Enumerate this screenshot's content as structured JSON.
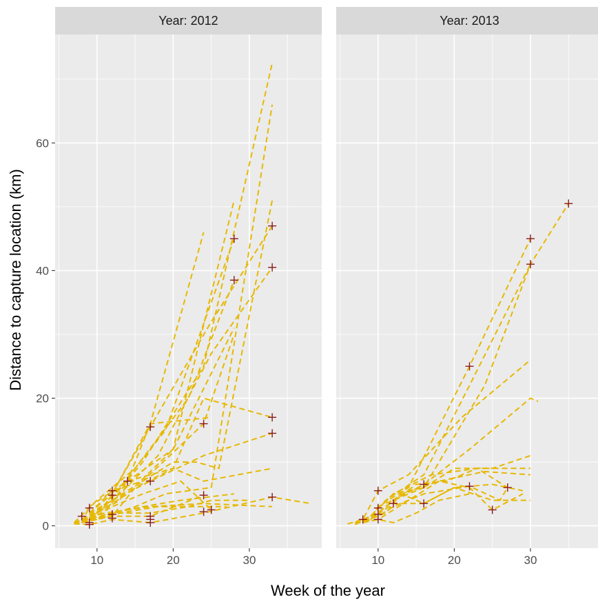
{
  "chart_data": {
    "type": "line",
    "xlabel": "Week of the year",
    "ylabel": "Distance to capture location (km)",
    "xlim": [
      4.5,
      39.5
    ],
    "ylim": [
      -3.5,
      77
    ],
    "x_ticks": [
      10,
      20,
      30
    ],
    "y_ticks": [
      0,
      20,
      40,
      60
    ],
    "grid": true,
    "colors": {
      "tracks": "#e6b800",
      "end_points": "#8b1a1a",
      "panel": "#ebebeb",
      "strip": "#d9d9d9"
    },
    "line_style": "dashed",
    "point_shape": "plus",
    "panels": [
      {
        "label": "Year: 2012",
        "tracks": [
          [
            [
              8,
              0.5
            ],
            [
              9,
              3
            ],
            [
              14,
              7
            ],
            [
              20,
              12
            ],
            [
              28,
              51
            ]
          ],
          [
            [
              8,
              1
            ],
            [
              10,
              2
            ],
            [
              13,
              6
            ],
            [
              19,
              15
            ],
            [
              28,
              45
            ]
          ],
          [
            [
              7,
              0.5
            ],
            [
              10,
              4
            ],
            [
              15,
              9
            ],
            [
              22,
              20
            ],
            [
              28,
              38.5
            ]
          ],
          [
            [
              8,
              1
            ],
            [
              11,
              3
            ],
            [
              16,
              10
            ],
            [
              24,
              25
            ],
            [
              33,
              72.5
            ]
          ],
          [
            [
              9,
              2
            ],
            [
              12,
              5
            ],
            [
              17,
              16
            ],
            [
              24,
              46
            ]
          ],
          [
            [
              8,
              0.5
            ],
            [
              11,
              3
            ],
            [
              17,
              15.5
            ],
            [
              25,
              32
            ],
            [
              33,
              47
            ]
          ],
          [
            [
              9,
              1
            ],
            [
              13,
              5
            ],
            [
              18,
              11
            ],
            [
              25,
              27
            ],
            [
              33,
              40.5
            ]
          ],
          [
            [
              9,
              2
            ],
            [
              12,
              5.5
            ],
            [
              16,
              7
            ],
            [
              24,
              16
            ],
            [
              28,
              30
            ]
          ],
          [
            [
              7,
              0.5
            ],
            [
              10,
              2
            ],
            [
              14,
              5
            ],
            [
              20,
              12
            ],
            [
              28,
              31
            ]
          ],
          [
            [
              8,
              1
            ],
            [
              12,
              4
            ],
            [
              17,
              7
            ],
            [
              24,
              11
            ],
            [
              33,
              14.5
            ]
          ],
          [
            [
              8,
              1
            ],
            [
              11,
              2
            ],
            [
              14,
              7
            ],
            [
              20,
              9
            ],
            [
              24,
              20
            ],
            [
              33,
              17
            ]
          ],
          [
            [
              9,
              1
            ],
            [
              12,
              3
            ],
            [
              16,
              5
            ],
            [
              21,
              7
            ],
            [
              25,
              2.5
            ]
          ],
          [
            [
              8,
              0.5
            ],
            [
              12,
              1.5
            ],
            [
              17,
              1.5
            ],
            [
              24,
              4.8
            ]
          ],
          [
            [
              7,
              0.3
            ],
            [
              9,
              0.2
            ],
            [
              12,
              1
            ],
            [
              17,
              0.5
            ],
            [
              24,
              2
            ],
            [
              33,
              4.5
            ],
            [
              38,
              3.5
            ]
          ],
          [
            [
              8,
              1
            ],
            [
              11,
              2
            ],
            [
              17,
              3
            ],
            [
              24,
              3.5
            ],
            [
              33,
              3
            ]
          ],
          [
            [
              7,
              0.3
            ],
            [
              10,
              1
            ],
            [
              13,
              2
            ],
            [
              18,
              3
            ],
            [
              27,
              3
            ]
          ],
          [
            [
              8,
              0.5
            ],
            [
              12,
              2
            ],
            [
              16,
              3
            ],
            [
              21,
              4
            ],
            [
              28,
              5
            ]
          ],
          [
            [
              9,
              1
            ],
            [
              12,
              1.5
            ],
            [
              15,
              6
            ],
            [
              20,
              9
            ],
            [
              24,
              7
            ],
            [
              33,
              9
            ]
          ],
          [
            [
              8,
              0.5
            ],
            [
              10,
              2
            ],
            [
              13,
              4
            ],
            [
              17,
              16
            ],
            [
              25,
              17
            ]
          ],
          [
            [
              9,
              2
            ],
            [
              12,
              4
            ],
            [
              16,
              7
            ],
            [
              20,
              10
            ],
            [
              23,
              10
            ],
            [
              26,
              9
            ],
            [
              33,
              51
            ]
          ],
          [
            [
              7,
              0.5
            ],
            [
              12,
              2
            ],
            [
              17,
              2
            ],
            [
              22,
              3
            ],
            [
              25,
              4
            ],
            [
              30,
              4
            ]
          ],
          [
            [
              8,
              0.8
            ],
            [
              11,
              1.5
            ],
            [
              15,
              3
            ],
            [
              19,
              5
            ],
            [
              25,
              6
            ],
            [
              33,
              66
            ]
          ]
        ],
        "end_points": [
          [
            8,
            1.5
          ],
          [
            9,
            0.5
          ],
          [
            9,
            2.8
          ],
          [
            9,
            0.2
          ],
          [
            12,
            5.5
          ],
          [
            12,
            4.8
          ],
          [
            12,
            1.8
          ],
          [
            12,
            1.2
          ],
          [
            14,
            7
          ],
          [
            17,
            15.5
          ],
          [
            17,
            7
          ],
          [
            17,
            1.5
          ],
          [
            17,
            1
          ],
          [
            17,
            0.5
          ],
          [
            24,
            16
          ],
          [
            24,
            4.8
          ],
          [
            24,
            2.2
          ],
          [
            25,
            2.5
          ],
          [
            28,
            45
          ],
          [
            28,
            38.5
          ],
          [
            33,
            47
          ],
          [
            33,
            40.5
          ],
          [
            33,
            17
          ],
          [
            33,
            14.5
          ],
          [
            33,
            4.5
          ]
        ]
      },
      {
        "label": "Year: 2013",
        "tracks": [
          [
            [
              7,
              0.5
            ],
            [
              9,
              1
            ],
            [
              10,
              3
            ],
            [
              14,
              6
            ],
            [
              22,
              25
            ],
            [
              30,
              45
            ]
          ],
          [
            [
              7,
              0.5
            ],
            [
              9,
              1.5
            ],
            [
              11,
              4
            ],
            [
              16,
              8
            ],
            [
              22,
              22
            ],
            [
              30,
              41
            ]
          ],
          [
            [
              6,
              0.3
            ],
            [
              8,
              1
            ],
            [
              10,
              5.5
            ],
            [
              14,
              8
            ],
            [
              21,
              17
            ],
            [
              30,
              26
            ]
          ],
          [
            [
              7,
              0.3
            ],
            [
              9,
              1
            ],
            [
              12,
              4
            ],
            [
              16,
              6.5
            ],
            [
              22,
              12
            ],
            [
              30,
              20
            ],
            [
              31,
              19.5
            ]
          ],
          [
            [
              7,
              0.5
            ],
            [
              9,
              1.5
            ],
            [
              12,
              5
            ],
            [
              16,
              6
            ],
            [
              20,
              9
            ],
            [
              25,
              9
            ],
            [
              30,
              11
            ]
          ],
          [
            [
              7,
              0.5
            ],
            [
              9,
              1.2
            ],
            [
              11,
              3
            ],
            [
              15,
              6.5
            ],
            [
              19,
              7
            ],
            [
              23,
              9
            ],
            [
              30,
              9
            ]
          ],
          [
            [
              7,
              0.2
            ],
            [
              10,
              2
            ],
            [
              13,
              5
            ],
            [
              16,
              3.5
            ],
            [
              20,
              6
            ],
            [
              25,
              6.5
            ],
            [
              29,
              5.5
            ]
          ],
          [
            [
              7,
              0.3
            ],
            [
              10,
              1.5
            ],
            [
              12,
              3
            ],
            [
              16,
              5
            ],
            [
              22,
              6.2
            ],
            [
              26,
              4
            ],
            [
              27,
              6
            ]
          ],
          [
            [
              7,
              0.5
            ],
            [
              10,
              1
            ],
            [
              14,
              4
            ],
            [
              18,
              7
            ],
            [
              22,
              6
            ],
            [
              25,
              2.5
            ],
            [
              29,
              5
            ]
          ],
          [
            [
              8,
              0.8
            ],
            [
              11,
              2
            ],
            [
              13,
              5
            ],
            [
              18,
              7
            ],
            [
              24,
              8.5
            ],
            [
              30,
              8
            ]
          ],
          [
            [
              8,
              0.5
            ],
            [
              10,
              1
            ],
            [
              12,
              0.5
            ],
            [
              15,
              2
            ],
            [
              18,
              4
            ],
            [
              22,
              5
            ]
          ],
          [
            [
              9,
              1
            ],
            [
              12,
              3.5
            ],
            [
              16,
              3.5
            ],
            [
              20,
              6
            ],
            [
              25,
              4
            ],
            [
              30,
              4
            ]
          ],
          [
            [
              9,
              1.5
            ],
            [
              12,
              5
            ],
            [
              17,
              8
            ],
            [
              23,
              9
            ],
            [
              27,
              6
            ]
          ],
          [
            [
              10,
              3
            ],
            [
              16,
              6
            ],
            [
              24,
              22
            ],
            [
              30,
              41
            ],
            [
              35,
              50.5
            ]
          ]
        ],
        "end_points": [
          [
            8,
            1
          ],
          [
            10,
            5.5
          ],
          [
            10,
            2.8
          ],
          [
            10,
            1.8
          ],
          [
            10,
            1
          ],
          [
            12,
            3.5
          ],
          [
            16,
            6.5
          ],
          [
            16,
            3.5
          ],
          [
            22,
            25
          ],
          [
            22,
            6.2
          ],
          [
            25,
            2.5
          ],
          [
            27,
            6
          ],
          [
            30,
            45
          ],
          [
            30,
            41
          ],
          [
            35,
            50.5
          ]
        ]
      }
    ]
  }
}
